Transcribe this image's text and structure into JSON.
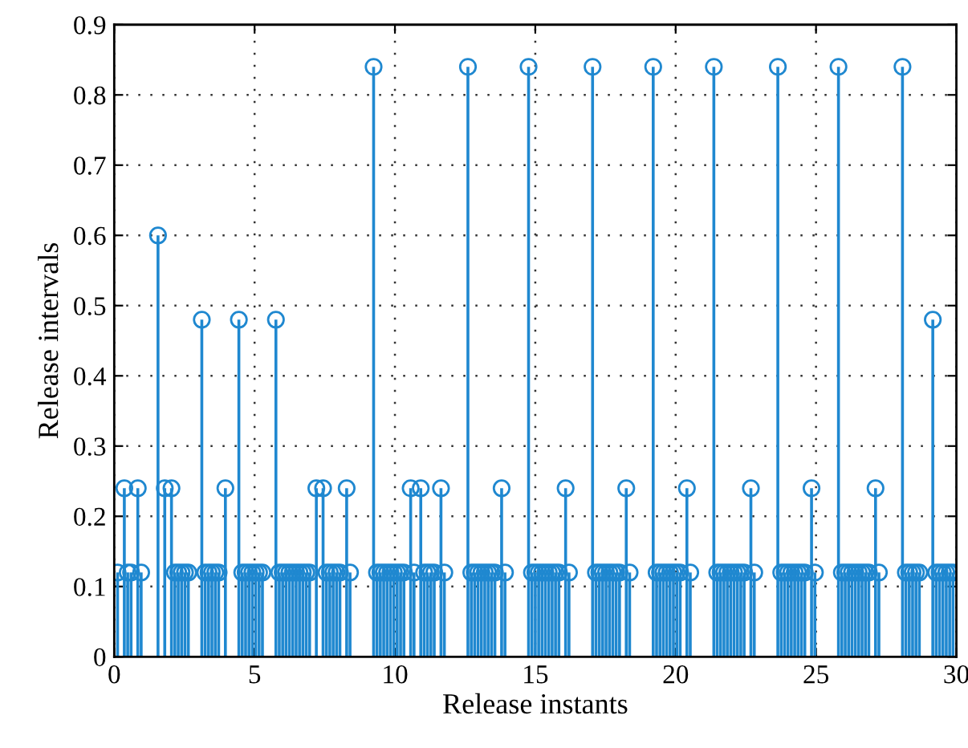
{
  "chart_data": {
    "type": "lollipop",
    "xlabel": "Release instants",
    "ylabel": "Release intervals",
    "x": [
      0.12,
      0.36,
      0.48,
      0.6,
      0.84,
      0.96,
      1.56,
      1.8,
      2.04,
      2.16,
      2.28,
      2.4,
      2.52,
      2.64,
      3.12,
      3.24,
      3.36,
      3.48,
      3.6,
      3.72,
      3.96,
      4.44,
      4.56,
      4.68,
      4.8,
      4.92,
      5.04,
      5.16,
      5.28,
      5.76,
      5.88,
      6.0,
      6.12,
      6.24,
      6.36,
      6.48,
      6.6,
      6.72,
      6.84,
      6.96,
      7.2,
      7.44,
      7.56,
      7.68,
      7.8,
      7.92,
      8.04,
      8.28,
      8.4,
      9.24,
      9.36,
      9.48,
      9.6,
      9.72,
      9.84,
      9.96,
      10.08,
      10.2,
      10.32,
      10.56,
      10.68,
      10.92,
      11.04,
      11.16,
      11.28,
      11.4,
      11.64,
      11.76,
      12.6,
      12.72,
      12.84,
      12.96,
      13.08,
      13.2,
      13.32,
      13.44,
      13.56,
      13.8,
      13.92,
      14.76,
      14.88,
      15.0,
      15.12,
      15.24,
      15.36,
      15.48,
      15.6,
      15.72,
      15.84,
      16.08,
      16.2,
      17.04,
      17.16,
      17.28,
      17.4,
      17.52,
      17.64,
      17.76,
      17.88,
      18.0,
      18.24,
      18.36,
      19.2,
      19.32,
      19.44,
      19.56,
      19.68,
      19.8,
      19.92,
      20.04,
      20.16,
      20.4,
      20.52,
      21.36,
      21.48,
      21.6,
      21.72,
      21.84,
      21.96,
      22.08,
      22.2,
      22.32,
      22.44,
      22.68,
      22.8,
      23.64,
      23.76,
      23.88,
      24.0,
      24.12,
      24.24,
      24.36,
      24.48,
      24.6,
      24.84,
      24.96,
      25.8,
      25.92,
      26.04,
      26.16,
      26.28,
      26.4,
      26.52,
      26.64,
      26.76,
      26.88,
      27.12,
      27.24,
      28.08,
      28.2,
      28.32,
      28.44,
      28.56,
      28.68,
      29.16,
      29.28,
      29.4,
      29.52,
      29.64,
      29.76,
      29.88
    ],
    "series": [
      {
        "color": "#1f88d0",
        "values": [
          0.12,
          0.24,
          0.12,
          0.12,
          0.24,
          0.12,
          0.6,
          0.24,
          0.24,
          0.12,
          0.12,
          0.12,
          0.12,
          0.12,
          0.48,
          0.12,
          0.12,
          0.12,
          0.12,
          0.12,
          0.24,
          0.48,
          0.12,
          0.12,
          0.12,
          0.12,
          0.12,
          0.12,
          0.12,
          0.48,
          0.12,
          0.12,
          0.12,
          0.12,
          0.12,
          0.12,
          0.12,
          0.12,
          0.12,
          0.12,
          0.24,
          0.24,
          0.12,
          0.12,
          0.12,
          0.12,
          0.12,
          0.24,
          0.12,
          0.84,
          0.12,
          0.12,
          0.12,
          0.12,
          0.12,
          0.12,
          0.12,
          0.12,
          0.12,
          0.24,
          0.12,
          0.24,
          0.12,
          0.12,
          0.12,
          0.12,
          0.24,
          0.12,
          0.84,
          0.12,
          0.12,
          0.12,
          0.12,
          0.12,
          0.12,
          0.12,
          0.12,
          0.24,
          0.12,
          0.84,
          0.12,
          0.12,
          0.12,
          0.12,
          0.12,
          0.12,
          0.12,
          0.12,
          0.12,
          0.24,
          0.12,
          0.84,
          0.12,
          0.12,
          0.12,
          0.12,
          0.12,
          0.12,
          0.12,
          0.12,
          0.24,
          0.12,
          0.84,
          0.12,
          0.12,
          0.12,
          0.12,
          0.12,
          0.12,
          0.12,
          0.12,
          0.24,
          0.12,
          0.84,
          0.12,
          0.12,
          0.12,
          0.12,
          0.12,
          0.12,
          0.12,
          0.12,
          0.12,
          0.24,
          0.12,
          0.84,
          0.12,
          0.12,
          0.12,
          0.12,
          0.12,
          0.12,
          0.12,
          0.12,
          0.24,
          0.12,
          0.84,
          0.12,
          0.12,
          0.12,
          0.12,
          0.12,
          0.12,
          0.12,
          0.12,
          0.12,
          0.24,
          0.12,
          0.84,
          0.12,
          0.12,
          0.12,
          0.12,
          0.12,
          0.48,
          0.12,
          0.12,
          0.12,
          0.12,
          0.12,
          0.12
        ]
      }
    ],
    "xlim": [
      0,
      30
    ],
    "ylim": [
      0,
      0.9
    ],
    "xticks": [
      0,
      5,
      10,
      15,
      20,
      25,
      30
    ],
    "yticks": [
      0,
      0.1,
      0.2,
      0.3,
      0.4,
      0.5,
      0.6,
      0.7,
      0.8,
      0.9
    ],
    "grid": true,
    "marker": "circle"
  }
}
